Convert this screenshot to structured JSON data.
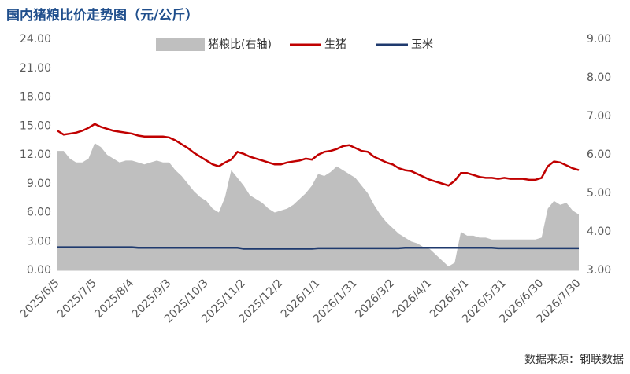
{
  "chart_data": {
    "type": "line",
    "title": "国内猪粮比价走势图（元/公斤）",
    "source": "数据来源：钢联数据",
    "categories": [
      "2025/6/5",
      null,
      null,
      null,
      null,
      null,
      "2025/7/5",
      null,
      null,
      null,
      null,
      null,
      "2025/8/4",
      null,
      null,
      null,
      null,
      null,
      "2025/9/3",
      null,
      null,
      null,
      null,
      null,
      "2025/10/3",
      null,
      null,
      null,
      null,
      null,
      "2025/11/2",
      null,
      null,
      null,
      null,
      null,
      "2025/12/2",
      null,
      null,
      null,
      null,
      null,
      "2026/1/1",
      null,
      null,
      null,
      null,
      null,
      "2026/1/31",
      null,
      null,
      null,
      null,
      null,
      "2026/3/2",
      null,
      null,
      null,
      null,
      null,
      "2026/4/1",
      null,
      null,
      null,
      null,
      null,
      "2026/5/1",
      null,
      null,
      null,
      null,
      null,
      "2026/5/31",
      null,
      null,
      null,
      null,
      null,
      "2026/6/30",
      null,
      null,
      null,
      null,
      null,
      "2026/7/30"
    ],
    "series": [
      {
        "name": "猪粮比(右轴)",
        "type": "area",
        "axis": "y2",
        "color": "#bfbfbf",
        "values": [
          6.1,
          6.1,
          5.9,
          5.8,
          5.8,
          5.9,
          6.3,
          6.2,
          6.0,
          5.9,
          5.8,
          5.85,
          5.85,
          5.8,
          5.75,
          5.8,
          5.85,
          5.8,
          5.8,
          5.6,
          5.45,
          5.25,
          5.05,
          4.9,
          4.8,
          4.6,
          4.5,
          4.9,
          5.6,
          5.4,
          5.2,
          4.95,
          4.85,
          4.75,
          4.6,
          4.5,
          4.55,
          4.6,
          4.7,
          4.85,
          5.0,
          5.2,
          5.5,
          5.45,
          5.55,
          5.7,
          5.6,
          5.5,
          5.4,
          5.2,
          5.0,
          4.7,
          4.45,
          4.25,
          4.1,
          3.95,
          3.85,
          3.75,
          3.7,
          3.6,
          3.55,
          3.4,
          3.25,
          3.1,
          3.2,
          4.0,
          3.9,
          3.9,
          3.85,
          3.85,
          3.8,
          3.8,
          3.8,
          3.8,
          3.8,
          3.8,
          3.8,
          3.8,
          3.85,
          4.6,
          4.8,
          4.7,
          4.75,
          4.55,
          4.45
        ]
      },
      {
        "name": "生猪",
        "color": "#c00000",
        "values": [
          14.5,
          14.1,
          14.2,
          14.3,
          14.5,
          14.8,
          15.2,
          14.9,
          14.7,
          14.5,
          14.4,
          14.3,
          14.2,
          14.0,
          13.9,
          13.9,
          13.9,
          13.9,
          13.8,
          13.5,
          13.1,
          12.7,
          12.2,
          11.8,
          11.4,
          11.0,
          10.8,
          11.2,
          11.5,
          12.3,
          12.1,
          11.8,
          11.6,
          11.4,
          11.2,
          11.0,
          11.0,
          11.2,
          11.3,
          11.4,
          11.6,
          11.5,
          12.0,
          12.3,
          12.4,
          12.6,
          12.9,
          13.0,
          12.7,
          12.4,
          12.3,
          11.8,
          11.5,
          11.2,
          11.0,
          10.6,
          10.4,
          10.3,
          10.0,
          9.7,
          9.4,
          9.2,
          9.0,
          8.8,
          9.3,
          10.1,
          10.1,
          9.9,
          9.7,
          9.6,
          9.6,
          9.5,
          9.6,
          9.5,
          9.5,
          9.5,
          9.4,
          9.4,
          9.6,
          10.8,
          11.3,
          11.2,
          10.9,
          10.6,
          10.4
        ]
      },
      {
        "name": "玉米",
        "color": "#1f3a6e",
        "values": [
          2.4,
          2.4,
          2.4,
          2.4,
          2.4,
          2.4,
          2.4,
          2.4,
          2.4,
          2.4,
          2.4,
          2.4,
          2.4,
          2.35,
          2.35,
          2.35,
          2.35,
          2.35,
          2.35,
          2.35,
          2.35,
          2.35,
          2.35,
          2.35,
          2.35,
          2.35,
          2.35,
          2.35,
          2.35,
          2.35,
          2.25,
          2.25,
          2.25,
          2.25,
          2.25,
          2.25,
          2.25,
          2.25,
          2.25,
          2.25,
          2.25,
          2.25,
          2.3,
          2.3,
          2.3,
          2.3,
          2.3,
          2.3,
          2.3,
          2.3,
          2.3,
          2.3,
          2.3,
          2.3,
          2.3,
          2.3,
          2.35,
          2.35,
          2.35,
          2.35,
          2.35,
          2.35,
          2.35,
          2.35,
          2.35,
          2.35,
          2.35,
          2.35,
          2.35,
          2.35,
          2.35,
          2.3,
          2.3,
          2.3,
          2.3,
          2.3,
          2.3,
          2.3,
          2.3,
          2.3,
          2.3,
          2.3,
          2.3,
          2.3,
          2.3
        ]
      }
    ],
    "ylim": [
      0,
      24
    ],
    "yticks": [
      {
        "value": 0,
        "label": "0.00"
      },
      {
        "value": 3,
        "label": "3.00"
      },
      {
        "value": 6,
        "label": "6.00"
      },
      {
        "value": 9,
        "label": "9.00"
      },
      {
        "value": 12,
        "label": "12.00"
      },
      {
        "value": 15,
        "label": "15.00"
      },
      {
        "value": 18,
        "label": "18.00"
      },
      {
        "value": 21,
        "label": "21.00"
      },
      {
        "value": 24,
        "label": "24.00"
      }
    ],
    "y2lim": [
      3,
      9
    ],
    "y2ticks": [
      {
        "value": 3,
        "label": "3.00"
      },
      {
        "value": 4,
        "label": "4.00"
      },
      {
        "value": 5,
        "label": "5.00"
      },
      {
        "value": 6,
        "label": "6.00"
      },
      {
        "value": 7,
        "label": "7.00"
      },
      {
        "value": 8,
        "label": "8.00"
      },
      {
        "value": 9,
        "label": "9.00"
      }
    ]
  }
}
